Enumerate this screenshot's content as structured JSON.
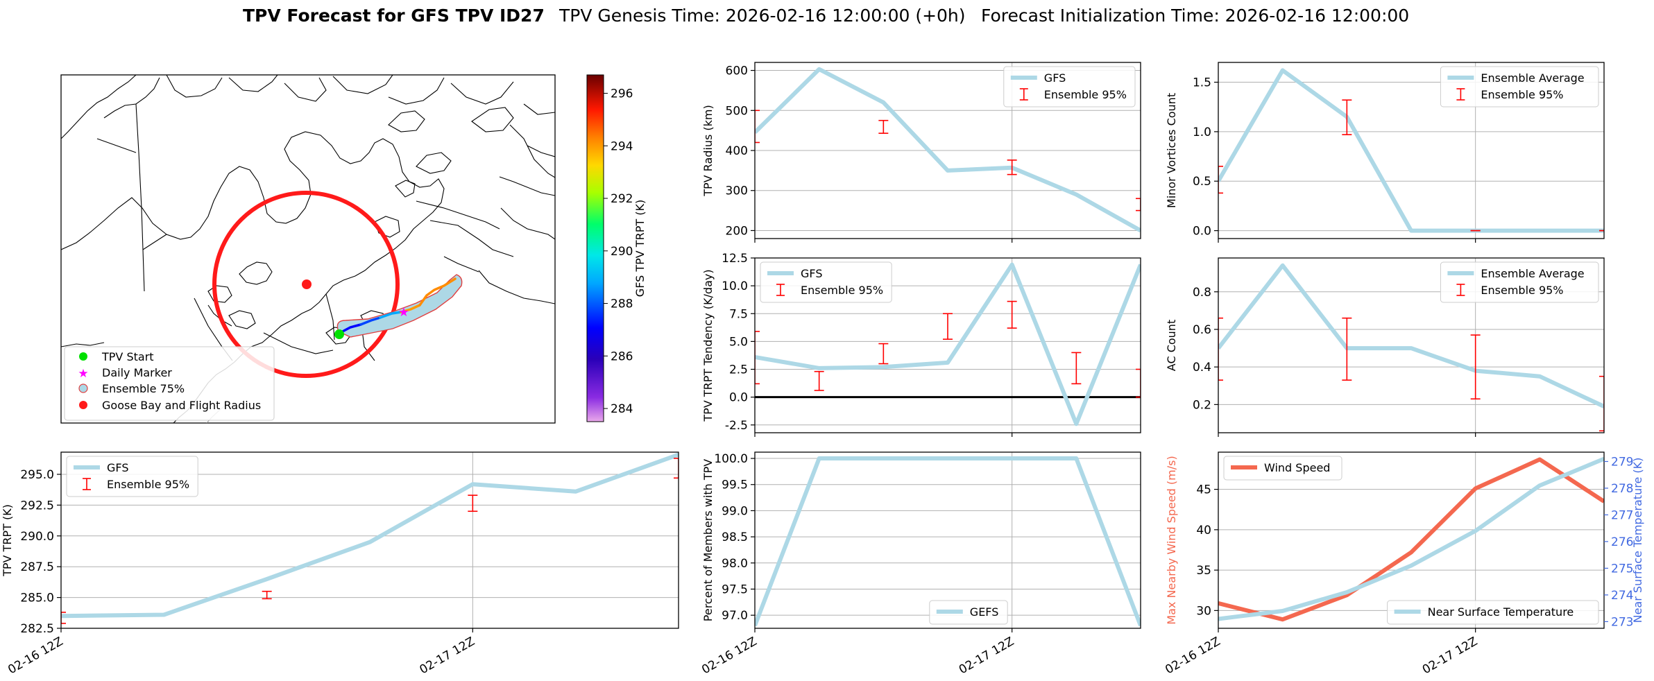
{
  "header": {
    "title_bold": "TPV Forecast for GFS TPV ID27",
    "genesis": "TPV Genesis Time: 2026-02-16 12:00:00 (+0h)",
    "init": "Forecast Initialization Time: 2026-02-16 12:00:00"
  },
  "colors": {
    "series": "#add8e6",
    "errorbar": "#ff0000",
    "wind": "#f4684f",
    "temp_axis": "#4169e1",
    "circle": "#ff1a1a",
    "start": "#00e000",
    "marker": "#ff00ff"
  },
  "map": {
    "colorbar_label": "GFS TPV TRPT (K)",
    "colorbar_ticks": [
      "284",
      "286",
      "288",
      "290",
      "292",
      "294",
      "296"
    ],
    "colorbar_range": [
      283.5,
      296.7
    ],
    "legend": [
      "TPV Start",
      "Daily Marker",
      "Ensemble 75%",
      "Goose Bay and Flight Radius"
    ]
  },
  "chart_data": [
    {
      "id": "radius",
      "type": "line",
      "ylabel": "TPV Radius (km)",
      "ylim": [
        180,
        620
      ],
      "yticks": [
        200,
        300,
        400,
        500,
        600
      ],
      "series": [
        {
          "name": "GFS",
          "x": [
            0,
            0.25,
            0.5,
            0.75,
            1.0,
            1.25,
            1.5
          ],
          "values": [
            445,
            603,
            520,
            350,
            357,
            290,
            200
          ]
        }
      ],
      "errorbars": [
        {
          "x": 0,
          "low": 420,
          "high": 500
        },
        {
          "x": 0.5,
          "low": 443,
          "high": 475
        },
        {
          "x": 1.0,
          "low": 340,
          "high": 376
        },
        {
          "x": 1.5,
          "low": 250,
          "high": 280
        }
      ],
      "legend": [
        "GFS",
        "Ensemble 95%"
      ],
      "legend_pos": "top-right"
    },
    {
      "id": "minor",
      "type": "line",
      "ylabel": "Minor Vortices Count",
      "ylim": [
        -0.08,
        1.7
      ],
      "yticks": [
        0.0,
        0.5,
        1.0,
        1.5
      ],
      "series": [
        {
          "name": "Ensemble Average",
          "x": [
            0,
            0.25,
            0.5,
            0.75,
            1.0,
            1.25,
            1.5
          ],
          "values": [
            0.5,
            1.62,
            1.15,
            0,
            0,
            0,
            0
          ]
        }
      ],
      "errorbars": [
        {
          "x": 0,
          "low": 0.38,
          "high": 0.65
        },
        {
          "x": 0.5,
          "low": 0.97,
          "high": 1.32
        },
        {
          "x": 1.0,
          "low": 0,
          "high": 0
        },
        {
          "x": 1.5,
          "low": 0,
          "high": 0
        }
      ],
      "legend": [
        "Ensemble Average",
        "Ensemble 95%"
      ],
      "legend_pos": "top-right"
    },
    {
      "id": "tendency",
      "type": "line",
      "ylabel": "TPV TRPT Tendency (K/day)",
      "ylim": [
        -3.2,
        12.5
      ],
      "yticks": [
        -2.5,
        0.0,
        2.5,
        5.0,
        7.5,
        10.0,
        12.5
      ],
      "zero_line": true,
      "series": [
        {
          "name": "GFS",
          "x": [
            0,
            0.25,
            0.5,
            0.75,
            1.0,
            1.25,
            1.5
          ],
          "values": [
            3.6,
            2.6,
            2.7,
            3.1,
            11.9,
            -2.4,
            11.9
          ]
        }
      ],
      "errorbars": [
        {
          "x": 0,
          "low": 1.2,
          "high": 5.9
        },
        {
          "x": 0.25,
          "low": 0.6,
          "high": 2.3
        },
        {
          "x": 0.5,
          "low": 3.0,
          "high": 4.8
        },
        {
          "x": 0.75,
          "low": 5.2,
          "high": 7.5
        },
        {
          "x": 1.0,
          "low": 6.2,
          "high": 8.6
        },
        {
          "x": 1.25,
          "low": 1.2,
          "high": 4.0
        },
        {
          "x": 1.5,
          "low": 0.0,
          "high": 2.5
        }
      ],
      "legend": [
        "GFS",
        "Ensemble 95%"
      ],
      "legend_pos": "top-left"
    },
    {
      "id": "ac",
      "type": "line",
      "ylabel": "AC Count",
      "ylim": [
        0.05,
        0.98
      ],
      "yticks": [
        0.2,
        0.4,
        0.6,
        0.8
      ],
      "series": [
        {
          "name": "Ensemble Average",
          "x": [
            0,
            0.25,
            0.5,
            0.75,
            1.0,
            1.25,
            1.5
          ],
          "values": [
            0.5,
            0.94,
            0.5,
            0.5,
            0.38,
            0.35,
            0.19
          ]
        }
      ],
      "errorbars": [
        {
          "x": 0,
          "low": 0.33,
          "high": 0.66
        },
        {
          "x": 0.5,
          "low": 0.33,
          "high": 0.66
        },
        {
          "x": 1.0,
          "low": 0.23,
          "high": 0.57
        },
        {
          "x": 1.5,
          "low": 0.06,
          "high": 0.35
        }
      ],
      "legend": [
        "Ensemble Average",
        "Ensemble 95%"
      ],
      "legend_pos": "top-right"
    },
    {
      "id": "trpt",
      "type": "line",
      "ylabel": "TPV TRPT (K)",
      "ylim": [
        282.5,
        296.8
      ],
      "yticks": [
        282.5,
        285.0,
        287.5,
        290.0,
        292.5,
        295.0
      ],
      "xticks": [
        "02-16 12Z",
        "02-17 12Z"
      ],
      "series": [
        {
          "name": "GFS",
          "x": [
            0,
            0.25,
            0.5,
            0.75,
            1.0,
            1.25,
            1.5
          ],
          "values": [
            283.5,
            283.6,
            286.5,
            289.5,
            294.2,
            293.6,
            296.6
          ]
        }
      ],
      "errorbars": [
        {
          "x": 0,
          "low": 282.9,
          "high": 283.8
        },
        {
          "x": 0.5,
          "low": 284.9,
          "high": 285.5
        },
        {
          "x": 1.0,
          "low": 292.0,
          "high": 293.3
        },
        {
          "x": 1.5,
          "low": 294.7,
          "high": 296.3
        }
      ],
      "legend": [
        "GFS",
        "Ensemble 95%"
      ],
      "legend_pos": "top-left"
    },
    {
      "id": "members",
      "type": "line",
      "ylabel": "Percent of Members with TPV",
      "ylim": [
        96.75,
        100.12
      ],
      "yticks": [
        97.0,
        97.5,
        98.0,
        98.5,
        99.0,
        99.5,
        100.0
      ],
      "xticks": [
        "02-16 12Z",
        "02-17 12Z"
      ],
      "series": [
        {
          "name": "GEFS",
          "x": [
            0,
            0.25,
            0.5,
            0.75,
            1.0,
            1.25,
            1.5
          ],
          "values": [
            96.8,
            100,
            100,
            100,
            100,
            100,
            96.8
          ]
        }
      ],
      "legend": [
        "GEFS"
      ],
      "legend_pos": "lower-center"
    },
    {
      "id": "wind",
      "type": "line",
      "ylabel": "Max Nearby Wind Speed (m/s)",
      "ylim": [
        27.8,
        49.6
      ],
      "yticks": [
        30,
        35,
        40,
        45
      ],
      "y2label": "Near Surface Temperature (K)",
      "y2lim": [
        272.75,
        279.35
      ],
      "y2ticks": [
        273,
        274,
        275,
        276,
        277,
        278,
        279
      ],
      "xticks": [
        "02-16 12Z",
        "02-17 12Z"
      ],
      "series": [
        {
          "name": "Wind Speed",
          "axis": "left",
          "x": [
            0,
            0.25,
            0.5,
            0.75,
            1.0,
            1.25,
            1.5
          ],
          "values": [
            30.9,
            28.9,
            31.9,
            37.2,
            45.1,
            48.7,
            43.5
          ]
        },
        {
          "name": "Near Surface Temperature",
          "axis": "right",
          "x": [
            0,
            0.25,
            0.5,
            0.75,
            1.0,
            1.25,
            1.5
          ],
          "values": [
            273.1,
            273.4,
            274.1,
            275.1,
            276.4,
            278.1,
            279.1
          ]
        }
      ],
      "legend": [
        "Wind Speed",
        "Near Surface Temperature"
      ]
    }
  ]
}
